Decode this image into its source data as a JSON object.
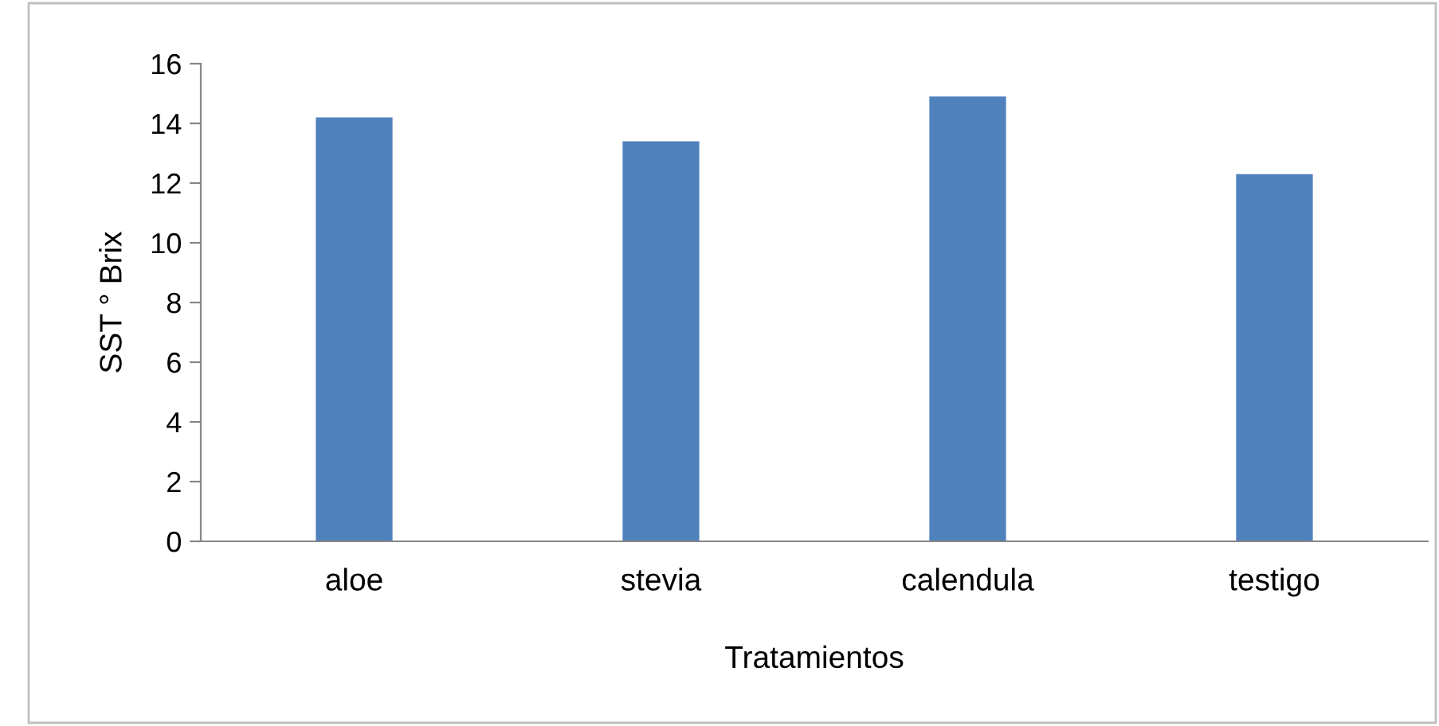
{
  "chart_data": {
    "type": "bar",
    "xlabel": "Tratamientos",
    "ylabel": "SST ° Brix",
    "categories": [
      "aloe",
      "stevia",
      "calendula",
      "testigo"
    ],
    "values": [
      14.2,
      13.4,
      14.9,
      12.3
    ],
    "color": "#4f81bd",
    "ylim": [
      0,
      16
    ],
    "yticks": [
      0,
      2,
      4,
      6,
      8,
      10,
      12,
      14,
      16
    ],
    "grid": false,
    "legend": false
  }
}
